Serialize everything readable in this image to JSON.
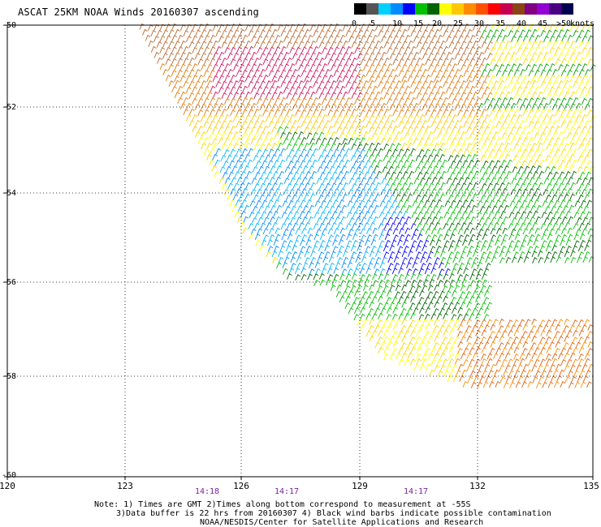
{
  "title": "ASCAT 25KM NOAA Winds 20160307 ascending",
  "legend": {
    "labels": [
      "0",
      "5",
      "10",
      "15",
      "20",
      "25",
      "30",
      "35",
      "40",
      "45",
      ">50"
    ],
    "units": "knots",
    "colors": [
      "#000000",
      "#555555",
      "#00d0ff",
      "#008cff",
      "#0000ff",
      "#00c000",
      "#006400",
      "#ffff00",
      "#ffc800",
      "#ff8c00",
      "#ff5000",
      "#ff0000",
      "#c80050",
      "#8b4513",
      "#800080",
      "#9400d3",
      "#4b0082",
      "#000050"
    ]
  },
  "axes": {
    "lat_labels": [
      "-50",
      "-52",
      "-54",
      "-56",
      "-58",
      "-60"
    ],
    "lon_labels": [
      "120",
      "123",
      "126",
      "129",
      "132",
      "135"
    ],
    "grid": true
  },
  "time_labels": [
    "14:18",
    "14:17",
    "14:17"
  ],
  "notes": [
    "Note: 1) Times are GMT 2)Times along bottom correspond to measurement at -55S",
    "3)Data buffer is 22 hrs from 20160307 4) Black wind barbs indicate possible contamination",
    "NOAA/NESDIS/Center for Satellite Applications and Research"
  ]
}
